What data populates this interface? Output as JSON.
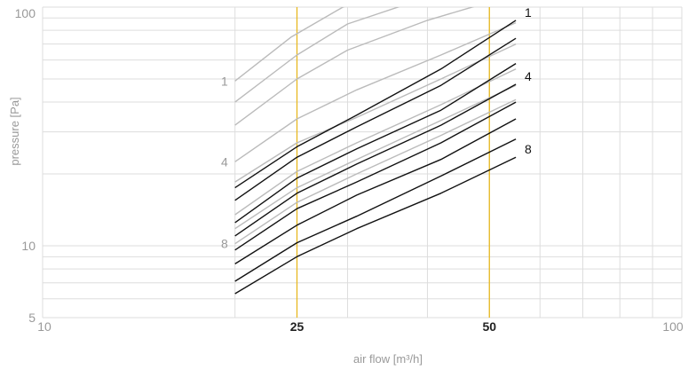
{
  "chart_data": {
    "type": "line",
    "xlabel": "air flow [m³/h]",
    "ylabel": "pressure [Pa]",
    "x_scale": "log",
    "y_scale": "log",
    "xlim": [
      10,
      100
    ],
    "ylim": [
      5,
      100
    ],
    "x_ticks": [
      {
        "value": 10,
        "label": "10",
        "emphasis": false
      },
      {
        "value": 25,
        "label": "25",
        "emphasis": true
      },
      {
        "value": 50,
        "label": "50",
        "emphasis": true
      },
      {
        "value": 100,
        "label": "100",
        "emphasis": false
      }
    ],
    "y_ticks": [
      {
        "value": 5,
        "label": "5"
      },
      {
        "value": 10,
        "label": "10"
      },
      {
        "value": 100,
        "label": "100"
      }
    ],
    "reference_lines_x": [
      25,
      50
    ],
    "grid": true,
    "colors": {
      "black_series": "#111111",
      "gray_series": "#bbbbbb",
      "reference": "#e8b820",
      "grid": "#dddddd"
    },
    "series": [
      {
        "name": "1",
        "color": "black",
        "x": [
          20,
          25,
          31,
          42,
          55
        ],
        "y": [
          17.5,
          26,
          35.3,
          55,
          88
        ]
      },
      {
        "color": "black",
        "x": [
          20,
          25,
          31,
          42,
          55
        ],
        "y": [
          15.5,
          23.5,
          31.5,
          47,
          74
        ]
      },
      {
        "color": "black",
        "x": [
          20,
          25,
          31,
          42,
          55
        ],
        "y": [
          12.5,
          19.2,
          25.5,
          37,
          58
        ]
      },
      {
        "name": "4",
        "color": "black",
        "x": [
          20,
          25,
          31,
          42,
          55
        ],
        "y": [
          11,
          16.6,
          22,
          32,
          47.5
        ]
      },
      {
        "color": "black",
        "x": [
          20,
          25,
          31,
          42,
          55
        ],
        "y": [
          9.6,
          14.3,
          18.5,
          27,
          40
        ]
      },
      {
        "color": "black",
        "x": [
          20,
          25,
          31,
          42,
          55
        ],
        "y": [
          8.4,
          12.2,
          16.3,
          23,
          34
        ]
      },
      {
        "color": "black",
        "x": [
          20,
          25,
          31,
          42,
          55
        ],
        "y": [
          7.1,
          10.3,
          13.3,
          19.6,
          28
        ]
      },
      {
        "name": "8",
        "color": "black",
        "x": [
          20,
          25,
          31,
          42,
          55
        ],
        "y": [
          6.3,
          9,
          11.8,
          16.6,
          23.5
        ]
      },
      {
        "name": "1",
        "color": "gray",
        "x": [
          20,
          24.5,
          29.5,
          36
        ],
        "y": [
          49,
          75,
          100,
          118
        ]
      },
      {
        "color": "gray",
        "x": [
          20,
          25,
          30,
          38
        ],
        "y": [
          40,
          63,
          85,
          105
        ]
      },
      {
        "color": "gray",
        "x": [
          20,
          25,
          30,
          40,
          50,
          55
        ],
        "y": [
          32,
          50,
          66,
          88,
          105,
          115
        ]
      },
      {
        "name": "4",
        "color": "gray",
        "x": [
          20,
          25,
          31,
          42,
          55
        ],
        "y": [
          22.5,
          34,
          45,
          63,
          86
        ]
      },
      {
        "color": "gray",
        "x": [
          20,
          25,
          31,
          42,
          55
        ],
        "y": [
          18.5,
          27,
          34.5,
          50,
          70
        ]
      },
      {
        "color": "gray",
        "x": [
          20,
          25,
          31,
          42,
          55
        ],
        "y": [
          13.5,
          20.5,
          27,
          39,
          55
        ]
      },
      {
        "color": "gray",
        "x": [
          20,
          25,
          31,
          42,
          55
        ],
        "y": [
          11.8,
          17.5,
          23,
          33.5,
          47
        ]
      },
      {
        "name": "8",
        "color": "gray",
        "x": [
          20,
          25,
          31,
          42,
          55
        ],
        "y": [
          10.2,
          15.2,
          20,
          29,
          41
        ]
      }
    ]
  }
}
